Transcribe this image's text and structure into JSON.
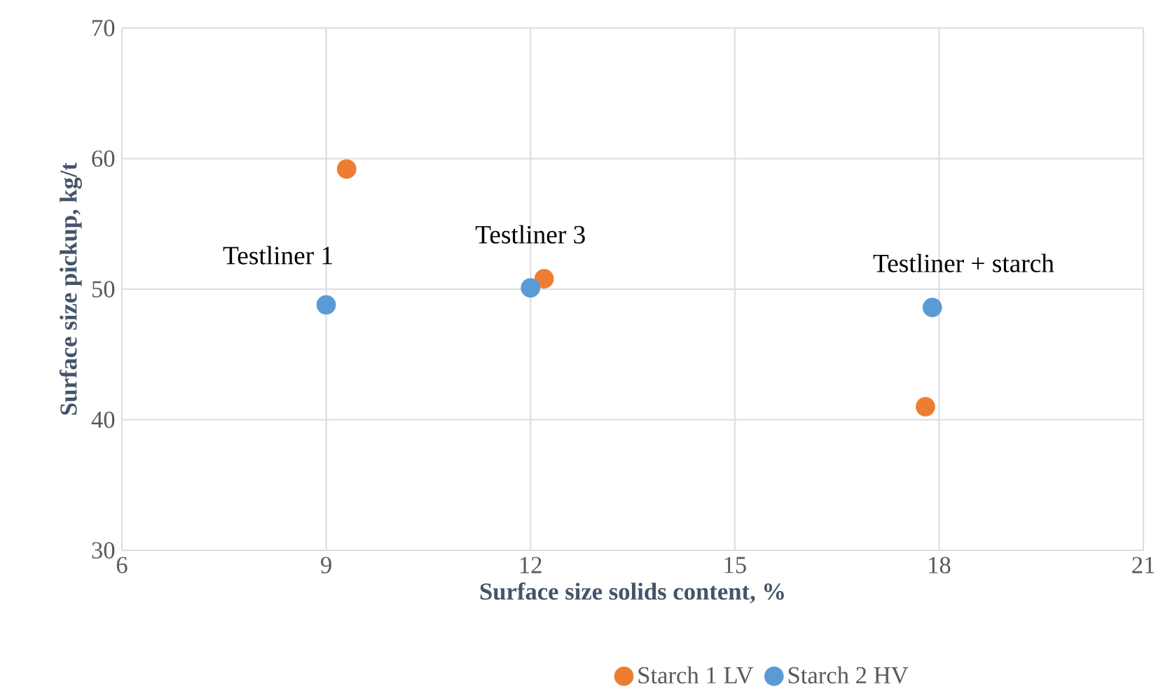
{
  "chart_data": {
    "type": "scatter",
    "xlabel": "Surface size solids content, %",
    "ylabel": "Surface size pickup, kg/t",
    "xlim": [
      6,
      21
    ],
    "xticks": [
      6,
      9,
      12,
      15,
      18,
      21
    ],
    "ylim": [
      30,
      70
    ],
    "yticks": [
      30,
      40,
      50,
      60,
      70
    ],
    "grid": true,
    "legend": "bottom",
    "marker": "circle",
    "series": [
      {
        "name": "Starch 1 LV",
        "color": "#ed7d31",
        "x": [
          9.3,
          12.2,
          17.8
        ],
        "values": [
          59.2,
          50.8,
          41.0
        ]
      },
      {
        "name": "Starch 2 HV",
        "color": "#5b9bd5",
        "x": [
          9.0,
          12.0,
          17.9
        ],
        "values": [
          48.8,
          50.1,
          48.6
        ]
      }
    ],
    "annotations": [
      "Testliner 1",
      "Testliner 3",
      "Testliner + starch"
    ]
  }
}
